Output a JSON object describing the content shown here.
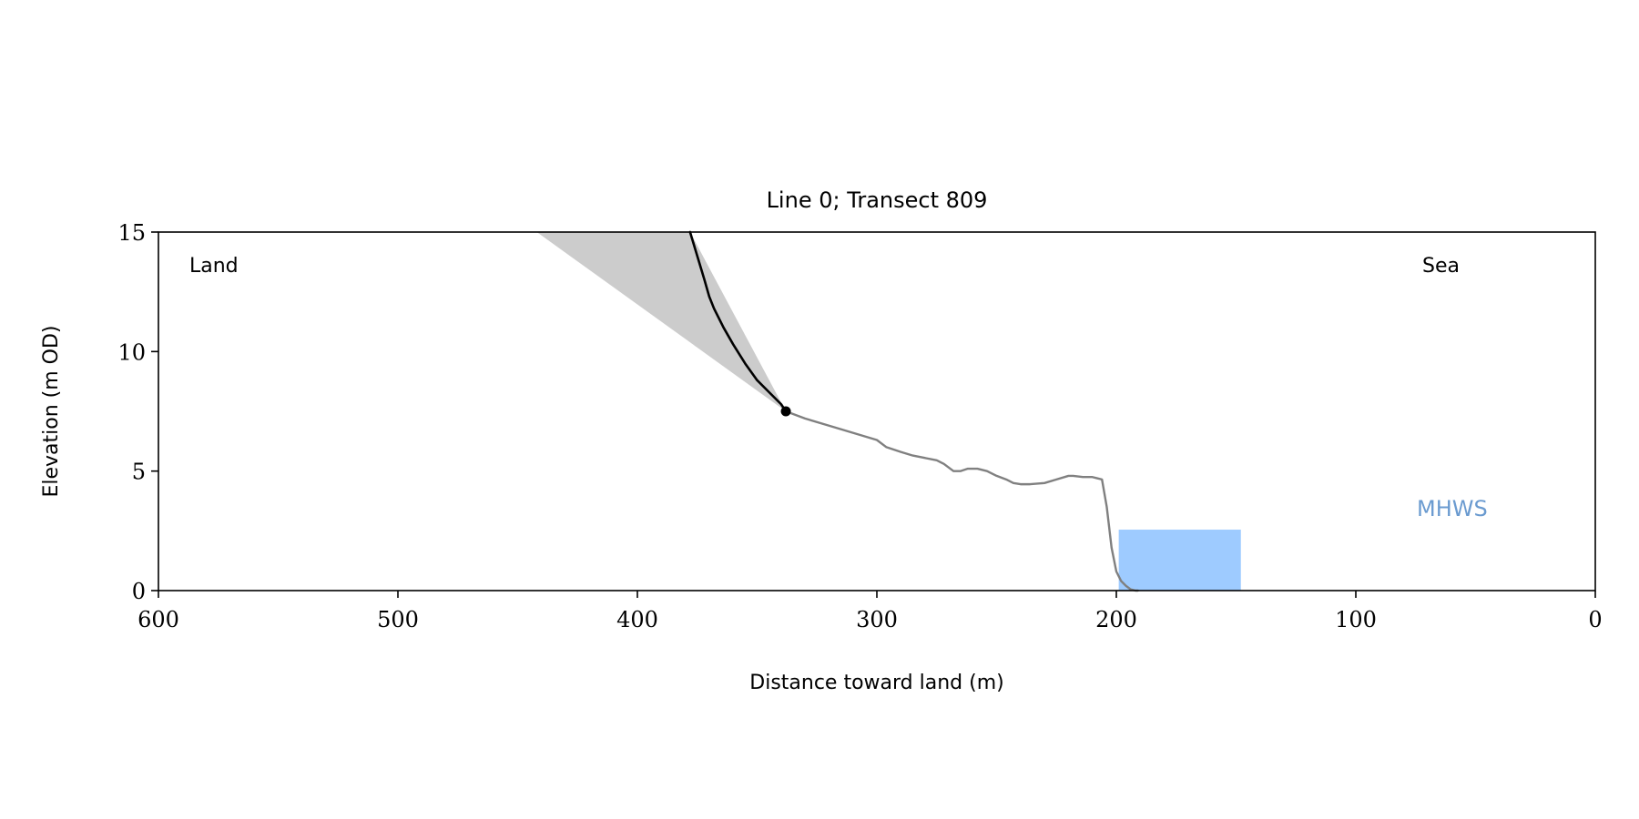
{
  "chart_data": {
    "type": "line",
    "title": "Line 0; Transect 809",
    "xlabel": "Distance toward land (m)",
    "ylabel": "Elevation (m OD)",
    "xlim": [
      600,
      0
    ],
    "ylim": [
      0,
      15
    ],
    "x_ticks": [
      600,
      500,
      400,
      300,
      200,
      100,
      0
    ],
    "y_ticks": [
      0,
      5,
      10,
      15
    ],
    "grid": false,
    "annotations": {
      "left": "Land",
      "right": "Sea",
      "mhws": "MHWS"
    },
    "colors": {
      "profile": "#808080",
      "cliff": "#000000",
      "shading": "#cccccc",
      "mhws_fill": "#9ecbff",
      "mhws_label": "#6b9bd0"
    },
    "mhws_band": {
      "x_start": 199,
      "x_end": 148,
      "y_bottom": 0,
      "y_top": 2.55
    },
    "cliff_toe": {
      "x": 338,
      "y": 7.5
    },
    "shaded_polygon": [
      [
        442,
        15
      ],
      [
        378,
        15
      ],
      [
        338,
        7.5
      ]
    ],
    "series": [
      {
        "role": "cliff",
        "x": [
          378,
          375,
          372,
          370,
          368,
          364,
          360,
          355,
          350,
          345,
          340,
          338
        ],
        "y": [
          15,
          14.0,
          13.0,
          12.3,
          11.8,
          11.0,
          10.3,
          9.5,
          8.8,
          8.3,
          7.8,
          7.5
        ]
      },
      {
        "role": "profile",
        "x": [
          338,
          330,
          320,
          310,
          300,
          296,
          290,
          285,
          280,
          275,
          272,
          268,
          265,
          262,
          258,
          254,
          250,
          246,
          243,
          240,
          236,
          230,
          225,
          220,
          218,
          214,
          210,
          208,
          206,
          204,
          202,
          200,
          198,
          196,
          194,
          192,
          191
        ],
        "y": [
          7.5,
          7.2,
          6.9,
          6.6,
          6.3,
          6.0,
          5.8,
          5.65,
          5.55,
          5.45,
          5.3,
          5.0,
          5.0,
          5.1,
          5.1,
          5.0,
          4.8,
          4.65,
          4.5,
          4.45,
          4.45,
          4.5,
          4.65,
          4.8,
          4.8,
          4.75,
          4.75,
          4.7,
          4.65,
          3.5,
          1.8,
          0.8,
          0.4,
          0.2,
          0.05,
          0.0,
          0.0
        ]
      }
    ]
  }
}
